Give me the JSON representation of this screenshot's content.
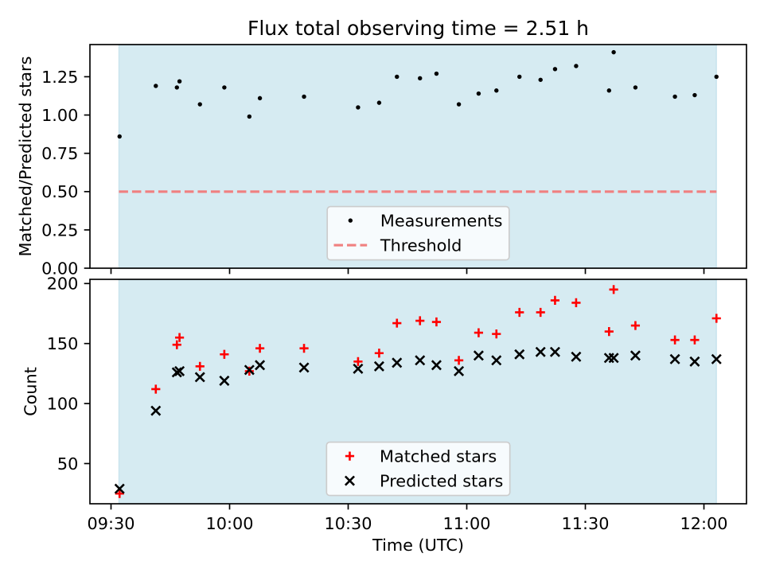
{
  "chart_data": [
    {
      "type": "scatter",
      "title": "Flux total observing time = 2.51 h",
      "xlabel": "",
      "ylabel": "Matched/Predicted stars",
      "sharex": true,
      "grid": false,
      "x": [
        "09:32:10",
        "09:41:20",
        "09:46:40",
        "09:47:20",
        "09:52:30",
        "09:58:40",
        "10:05:00",
        "10:07:40",
        "10:18:50",
        "10:32:30",
        "10:37:50",
        "10:42:20",
        "10:48:10",
        "10:52:20",
        "10:58:00",
        "11:03:00",
        "11:07:30",
        "11:13:20",
        "11:18:40",
        "11:22:20",
        "11:27:40",
        "11:36:00",
        "11:37:10",
        "11:42:40",
        "11:52:40",
        "11:57:40",
        "12:03:10"
      ],
      "xlim": [
        "09:24:40",
        "12:10:46"
      ],
      "ylim": [
        0,
        1.46
      ],
      "yticks": [
        "0.00",
        "0.25",
        "0.50",
        "0.75",
        "1.00",
        "1.25"
      ],
      "shaded_span": {
        "from": "09:32:00",
        "to": "12:03:10",
        "color": "#add8e6"
      },
      "series": [
        {
          "name": "Measurements",
          "type": "scatter",
          "marker": "dot",
          "color": "#000000",
          "values": [
            0.86,
            1.19,
            1.18,
            1.22,
            1.07,
            1.18,
            0.99,
            1.11,
            1.12,
            1.05,
            1.08,
            1.25,
            1.24,
            1.27,
            1.07,
            1.14,
            1.16,
            1.25,
            1.23,
            1.3,
            1.32,
            1.16,
            1.41,
            1.18,
            1.12,
            1.13,
            1.25
          ]
        },
        {
          "name": "Threshold",
          "type": "line",
          "linestyle": "dashed",
          "color": "#f08080",
          "x": [
            "09:32:00",
            "12:03:10"
          ],
          "values": [
            0.5,
            0.5
          ]
        }
      ],
      "legend": {
        "loc": "lower center"
      }
    },
    {
      "type": "scatter",
      "title": "",
      "xlabel": "Time (UTC)",
      "ylabel": "Count",
      "grid": false,
      "x": [
        "09:32:10",
        "09:41:20",
        "09:46:40",
        "09:47:20",
        "09:52:30",
        "09:58:40",
        "10:05:00",
        "10:07:40",
        "10:18:50",
        "10:32:30",
        "10:37:50",
        "10:42:20",
        "10:48:10",
        "10:52:20",
        "10:58:00",
        "11:03:00",
        "11:07:30",
        "11:13:20",
        "11:18:40",
        "11:22:20",
        "11:27:40",
        "11:36:00",
        "11:37:10",
        "11:42:40",
        "11:52:40",
        "11:57:40",
        "12:03:10"
      ],
      "xlim": [
        "09:24:40",
        "12:10:46"
      ],
      "xticks": [
        "09:30",
        "10:00",
        "10:30",
        "11:00",
        "11:30",
        "12:00"
      ],
      "ylim": [
        16.5,
        203.5
      ],
      "yticks": [
        "50",
        "100",
        "150",
        "200"
      ],
      "shaded_span": {
        "from": "09:32:00",
        "to": "12:03:10",
        "color": "#add8e6"
      },
      "series": [
        {
          "name": "Matched stars",
          "type": "scatter",
          "marker": "plus",
          "color": "#ff0000",
          "values": [
            25,
            112,
            149,
            155,
            131,
            141,
            127,
            146,
            146,
            135,
            142,
            167,
            169,
            168,
            136,
            159,
            158,
            176,
            176,
            186,
            184,
            160,
            195,
            165,
            153,
            153,
            171
          ]
        },
        {
          "name": "Predicted stars",
          "type": "scatter",
          "marker": "x",
          "color": "#000000",
          "values": [
            29,
            94,
            126,
            127,
            122,
            119,
            128,
            132,
            130,
            129,
            131,
            134,
            136,
            132,
            127,
            140,
            136,
            141,
            143,
            143,
            139,
            138,
            138,
            140,
            137,
            135,
            137
          ]
        }
      ],
      "legend": {
        "loc": "lower center"
      }
    }
  ]
}
